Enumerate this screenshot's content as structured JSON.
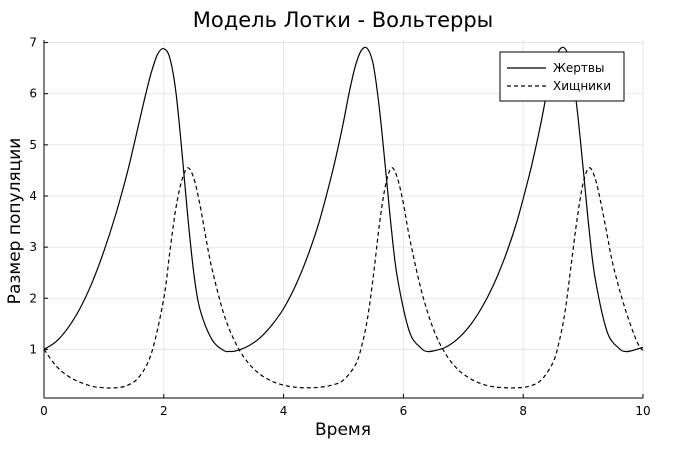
{
  "chart_data": {
    "type": "line",
    "title": "Модель Лотки - Вольтерры",
    "xlabel": "Время",
    "ylabel": "Размер популяции",
    "xlim": [
      0,
      10
    ],
    "ylim": [
      0.05,
      7.05
    ],
    "xticks": [
      0,
      2,
      4,
      6,
      8,
      10
    ],
    "yticks": [
      1,
      2,
      3,
      4,
      5,
      6,
      7
    ],
    "grid": true,
    "legend_position": "top-right",
    "series": [
      {
        "name": "Жертвы",
        "style": "solid",
        "color": "#000000",
        "x": [
          0,
          0.2,
          0.4,
          0.6,
          0.8,
          1.0,
          1.2,
          1.4,
          1.6,
          1.7,
          1.8,
          1.9,
          2.0,
          2.1,
          2.2,
          2.3,
          2.4,
          2.5,
          2.6,
          2.8,
          3.0,
          3.1,
          3.2,
          3.4,
          3.6,
          3.8,
          4.0,
          4.2,
          4.4,
          4.6,
          4.8,
          4.9,
          5.0,
          5.1,
          5.2,
          5.3,
          5.4,
          5.5,
          5.6,
          5.7,
          5.8,
          5.9,
          6.1,
          6.3,
          6.4,
          6.5,
          6.7,
          6.9,
          7.1,
          7.3,
          7.5,
          7.7,
          7.9,
          8.1,
          8.2,
          8.3,
          8.4,
          8.5,
          8.6,
          8.7,
          8.8,
          8.9,
          9.0,
          9.1,
          9.2,
          9.4,
          9.6,
          9.7,
          9.8,
          10.0
        ],
        "values": [
          1.0,
          1.15,
          1.42,
          1.8,
          2.3,
          2.92,
          3.65,
          4.5,
          5.5,
          6.0,
          6.45,
          6.78,
          6.88,
          6.7,
          6.05,
          4.9,
          3.6,
          2.5,
          1.8,
          1.2,
          0.98,
          0.96,
          0.97,
          1.06,
          1.22,
          1.47,
          1.8,
          2.25,
          2.82,
          3.52,
          4.4,
          4.9,
          5.45,
          6.05,
          6.55,
          6.85,
          6.88,
          6.55,
          5.7,
          4.55,
          3.35,
          2.4,
          1.35,
          1.02,
          0.96,
          0.97,
          1.04,
          1.2,
          1.45,
          1.8,
          2.25,
          2.82,
          3.52,
          4.4,
          4.9,
          5.45,
          6.05,
          6.55,
          6.85,
          6.88,
          6.55,
          5.7,
          4.55,
          3.35,
          2.4,
          1.35,
          1.02,
          0.96,
          0.97,
          1.04
        ]
      },
      {
        "name": "Хищники",
        "style": "dashed",
        "color": "#000000",
        "x": [
          0,
          0.2,
          0.4,
          0.6,
          0.8,
          1.0,
          1.2,
          1.4,
          1.6,
          1.8,
          2.0,
          2.1,
          2.2,
          2.3,
          2.4,
          2.5,
          2.6,
          2.7,
          2.8,
          3.0,
          3.2,
          3.4,
          3.6,
          3.8,
          4.0,
          4.2,
          4.4,
          4.6,
          4.8,
          5.0,
          5.2,
          5.3,
          5.4,
          5.5,
          5.6,
          5.7,
          5.8,
          5.9,
          6.0,
          6.1,
          6.3,
          6.5,
          6.7,
          6.9,
          7.1,
          7.3,
          7.5,
          7.7,
          7.9,
          8.1,
          8.3,
          8.5,
          8.6,
          8.7,
          8.8,
          8.9,
          9.0,
          9.1,
          9.2,
          9.3,
          9.4,
          9.5,
          9.7,
          9.9,
          10.0
        ],
        "values": [
          1.0,
          0.68,
          0.48,
          0.36,
          0.28,
          0.25,
          0.25,
          0.3,
          0.48,
          0.95,
          2.0,
          2.9,
          3.75,
          4.3,
          4.55,
          4.35,
          3.85,
          3.2,
          2.6,
          1.7,
          1.12,
          0.75,
          0.52,
          0.38,
          0.3,
          0.26,
          0.25,
          0.26,
          0.3,
          0.4,
          0.7,
          1.05,
          1.6,
          2.45,
          3.45,
          4.2,
          4.55,
          4.35,
          3.85,
          3.2,
          2.15,
          1.4,
          0.92,
          0.62,
          0.44,
          0.33,
          0.27,
          0.25,
          0.25,
          0.28,
          0.4,
          0.75,
          1.15,
          1.75,
          2.65,
          3.55,
          4.25,
          4.55,
          4.35,
          3.85,
          3.25,
          2.65,
          1.8,
          1.15,
          0.98
        ]
      }
    ]
  }
}
